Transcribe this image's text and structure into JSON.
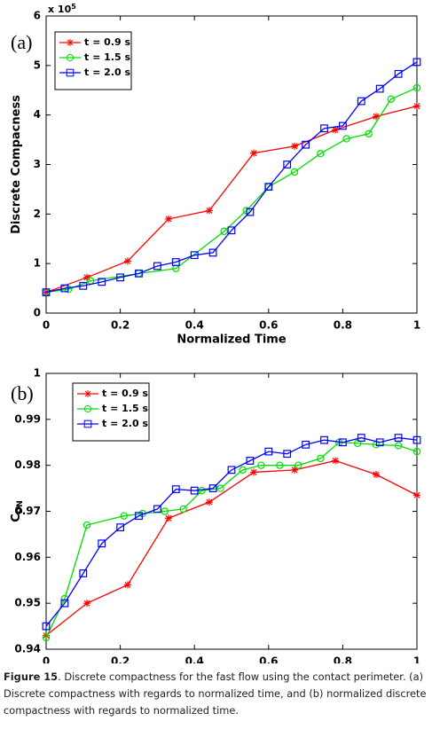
{
  "chart_data": [
    {
      "type": "line",
      "panel_label": "(a)",
      "xlabel": "Normalized Time",
      "ylabel": "Discrete Compacness",
      "y_multiplier": {
        "base": "x 10",
        "exponent": "5"
      },
      "xlim": [
        0,
        1
      ],
      "xticks": [
        0,
        0.2,
        0.4,
        0.6,
        0.8,
        1
      ],
      "ylim": [
        0,
        6
      ],
      "yticks": [
        0,
        1,
        2,
        3,
        4,
        5,
        6
      ],
      "legend": "upper left",
      "series": [
        {
          "name": "t = 0.9 s",
          "color": "#ff0000",
          "marker": "*",
          "x": [
            0,
            0.11,
            0.22,
            0.33,
            0.44,
            0.56,
            0.67,
            0.78,
            0.89,
            1
          ],
          "values": [
            0.42,
            0.72,
            1.05,
            1.9,
            2.07,
            3.23,
            3.37,
            3.7,
            3.97,
            4.18
          ]
        },
        {
          "name": "t = 1.5 s",
          "color": "#00dd00",
          "marker": "o",
          "x": [
            0,
            0.06,
            0.12,
            0.25,
            0.35,
            0.48,
            0.54,
            0.6,
            0.67,
            0.74,
            0.81,
            0.87,
            0.93,
            1
          ],
          "values": [
            0.42,
            0.48,
            0.65,
            0.8,
            0.9,
            1.65,
            2.07,
            2.55,
            2.85,
            3.22,
            3.52,
            3.62,
            4.32,
            4.55
          ]
        },
        {
          "name": "t = 2.0 s",
          "color": "#0000ff",
          "marker": "s",
          "x": [
            0,
            0.05,
            0.1,
            0.15,
            0.2,
            0.25,
            0.3,
            0.35,
            0.4,
            0.45,
            0.5,
            0.55,
            0.6,
            0.65,
            0.7,
            0.75,
            0.8,
            0.85,
            0.9,
            0.95,
            1
          ],
          "values": [
            0.42,
            0.5,
            0.55,
            0.63,
            0.72,
            0.8,
            0.95,
            1.03,
            1.17,
            1.22,
            1.67,
            2.04,
            2.55,
            3.0,
            3.4,
            3.73,
            3.78,
            4.28,
            4.53,
            4.83,
            5.07
          ]
        }
      ]
    },
    {
      "type": "line",
      "panel_label": "(b)",
      "xlabel": "Normalized Time",
      "ylabel": "C",
      "ylabel_sub": "DN",
      "xlim": [
        0,
        1
      ],
      "xticks": [
        0,
        0.2,
        0.4,
        0.6,
        0.8,
        1
      ],
      "ylim": [
        0.94,
        1
      ],
      "yticks": [
        0.94,
        0.95,
        0.96,
        0.97,
        0.98,
        0.99,
        1
      ],
      "legend": "upper left",
      "series": [
        {
          "name": "t = 0.9 s",
          "color": "#ff0000",
          "marker": "*",
          "x": [
            0,
            0.11,
            0.22,
            0.33,
            0.44,
            0.56,
            0.67,
            0.78,
            0.89,
            1
          ],
          "values": [
            0.943,
            0.95,
            0.954,
            0.9685,
            0.972,
            0.9785,
            0.979,
            0.981,
            0.978,
            0.9735
          ]
        },
        {
          "name": "t = 1.5 s",
          "color": "#00dd00",
          "marker": "o",
          "x": [
            0,
            0.05,
            0.11,
            0.21,
            0.26,
            0.32,
            0.37,
            0.42,
            0.47,
            0.53,
            0.58,
            0.63,
            0.68,
            0.74,
            0.79,
            0.84,
            0.89,
            0.95,
            1
          ],
          "values": [
            0.9425,
            0.951,
            0.967,
            0.969,
            0.9695,
            0.97,
            0.9705,
            0.9745,
            0.975,
            0.979,
            0.98,
            0.98,
            0.98,
            0.9815,
            0.985,
            0.9848,
            0.9845,
            0.9843,
            0.983
          ]
        },
        {
          "name": "t = 2.0 s",
          "color": "#0000ff",
          "marker": "s",
          "x": [
            0,
            0.05,
            0.1,
            0.15,
            0.2,
            0.25,
            0.3,
            0.35,
            0.4,
            0.45,
            0.5,
            0.55,
            0.6,
            0.65,
            0.7,
            0.75,
            0.8,
            0.85,
            0.9,
            0.95,
            1
          ],
          "values": [
            0.945,
            0.95,
            0.9565,
            0.963,
            0.9665,
            0.969,
            0.9705,
            0.9748,
            0.9745,
            0.975,
            0.979,
            0.981,
            0.983,
            0.9825,
            0.9845,
            0.9855,
            0.985,
            0.986,
            0.985,
            0.986,
            0.9855
          ]
        }
      ]
    }
  ],
  "caption": {
    "label": "Figure 15",
    "text": ". Discrete compactness for the fast flow using the contact perimeter. (a) Discrete compactness with regards to normalized time, and (b) normalized discrete compactness with regards to normalized time."
  }
}
